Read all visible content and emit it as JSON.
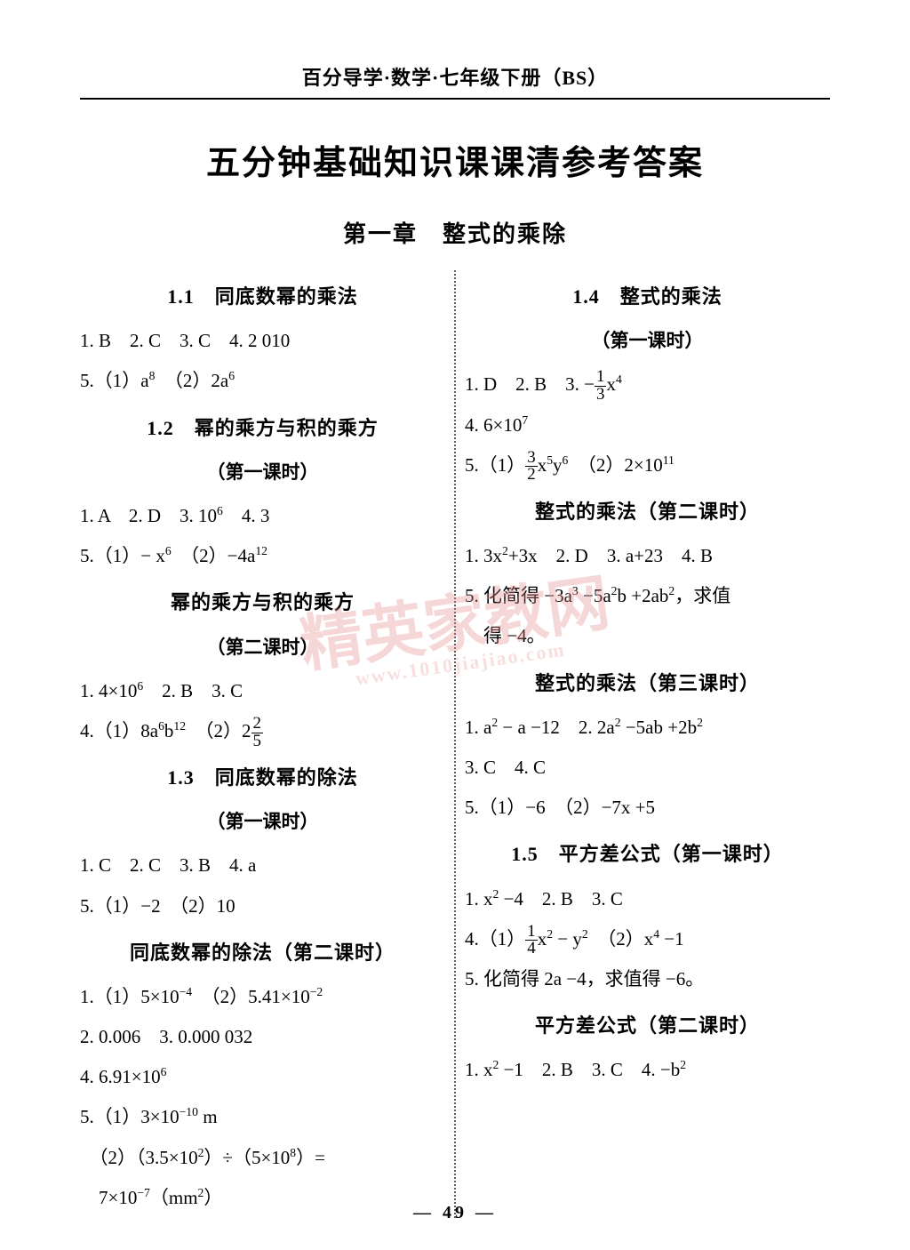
{
  "header": "百分导学·数学·七年级下册（BS）",
  "main_title": "五分钟基础知识课课清参考答案",
  "chapter": "第一章　整式的乘除",
  "page_number": "— 49 —",
  "watermark": {
    "main": "精英家教网",
    "sub": "www.1010jiajiao.com"
  },
  "left": {
    "s1_1": {
      "title": "1.1　同底数幂的乘法",
      "l1": "1. B　2. C　3. C　4. 2 010",
      "l2_pre": "5.（1）a",
      "l2_sup1": "8",
      "l2_mid": "　（2）2a",
      "l2_sup2": "6"
    },
    "s1_2a": {
      "title": "1.2　幂的乘方与积的乘方",
      "sub": "（第一课时）",
      "l1_pre": "1. A　2. D　3. 10",
      "l1_sup": "6",
      "l1_post": "　4. 3",
      "l2_pre": "5.（1）− x",
      "l2_sup1": "6",
      "l2_mid": "　（2）−4a",
      "l2_sup2": "12"
    },
    "s1_2b": {
      "title": "幂的乘方与积的乘方",
      "sub": "（第二课时）",
      "l1_pre": "1. 4×10",
      "l1_sup": "6",
      "l1_post": "　2. B　3. C",
      "l2_pre": "4.（1）8a",
      "l2_s1": "6",
      "l2_mid1": "b",
      "l2_s2": "12",
      "l2_mid2": "　（2）2",
      "l2_fn": "2",
      "l2_fd": "5"
    },
    "s1_3a": {
      "title": "1.3　同底数幂的除法",
      "sub": "（第一课时）",
      "l1": "1. C　2. C　3. B　4. a",
      "l2": "5.（1）−2　（2）10"
    },
    "s1_3b": {
      "title": "同底数幂的除法（第二课时）",
      "l1_pre": "1.（1）5×10",
      "l1_s1": "−4",
      "l1_mid": "　（2）5.41×10",
      "l1_s2": "−2",
      "l2": "2. 0.006　3. 0.000 032",
      "l3_pre": "4. 6.91×10",
      "l3_sup": "6",
      "l4_pre": "5.（1）3×10",
      "l4_sup": "−10",
      "l4_post": " m",
      "l5_pre": "　（2）（3.5×10",
      "l5_s1": "2",
      "l5_mid": "）÷（5×10",
      "l5_s2": "8",
      "l5_post": "）=",
      "l6_pre": "　7×10",
      "l6_sup": "−7",
      "l6_post": "（mm",
      "l6_sup2": "2",
      "l6_end": "）"
    }
  },
  "right": {
    "s1_4a": {
      "title": "1.4　整式的乘法",
      "sub": "（第一课时）",
      "l1_pre": "1. D　2. B　3. −",
      "l1_fn": "1",
      "l1_fd": "3",
      "l1_mid": "x",
      "l1_sup": "4",
      "l2_pre": "4. 6×10",
      "l2_sup": "7",
      "l3_pre": "5.（1）",
      "l3_fn": "3",
      "l3_fd": "2",
      "l3_mid1": "x",
      "l3_s1": "5",
      "l3_mid2": "y",
      "l3_s2": "6",
      "l3_mid3": "　（2）2×10",
      "l3_s3": "11"
    },
    "s1_4b": {
      "title": "整式的乘法（第二课时）",
      "l1_pre": "1. 3x",
      "l1_s1": "2",
      "l1_mid": "+3x　2. D　3. a+23　4. B",
      "l2_pre": "5. 化简得 −3a",
      "l2_s1": "3",
      "l2_m1": " −5a",
      "l2_s2": "2",
      "l2_m2": "b +2ab",
      "l2_s3": "2",
      "l2_post": "，求值",
      "l3": "　得 −4。"
    },
    "s1_4c": {
      "title": "整式的乘法（第三课时）",
      "l1_pre": "1. a",
      "l1_s1": "2",
      "l1_m1": " − a −12　2. 2a",
      "l1_s2": "2",
      "l1_m2": " −5ab +2b",
      "l1_s3": "2",
      "l2": "3. C　4. C",
      "l3": "5.（1）−6　（2）−7x +5"
    },
    "s1_5a": {
      "title": "1.5　平方差公式（第一课时）",
      "l1_pre": "1. x",
      "l1_s1": "2",
      "l1_post": " −4　2. B　3. C",
      "l2_pre": "4.（1）",
      "l2_fn": "1",
      "l2_fd": "4",
      "l2_m1": "x",
      "l2_s1": "2",
      "l2_m2": " − y",
      "l2_s2": "2",
      "l2_m3": "　（2）x",
      "l2_s3": "4",
      "l2_post": " −1",
      "l3": "5. 化简得 2a −4，求值得 −6。"
    },
    "s1_5b": {
      "title": "平方差公式（第二课时）",
      "l1_pre": "1. x",
      "l1_s1": "2",
      "l1_mid": " −1　2. B　3. C　4. −b",
      "l1_s2": "2"
    }
  }
}
